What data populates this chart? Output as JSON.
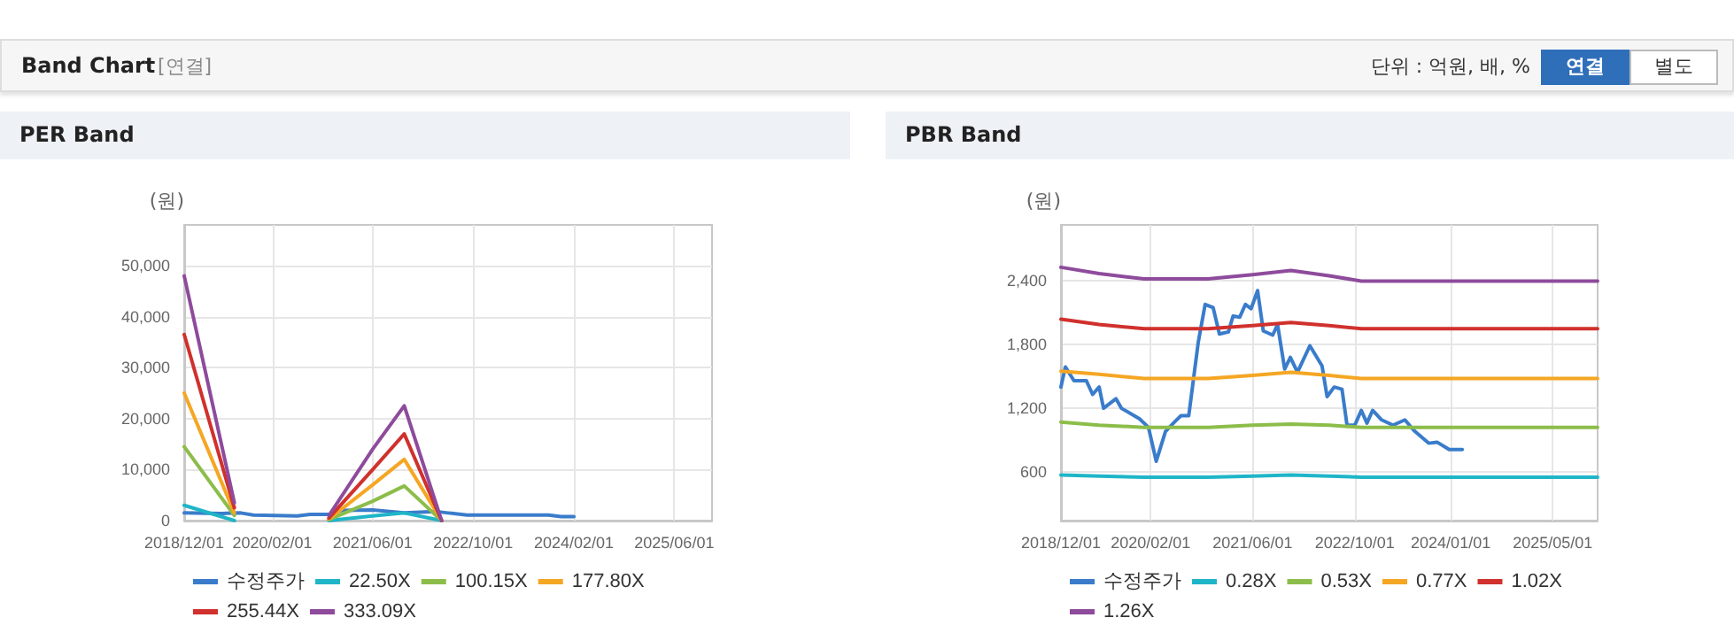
{
  "chart_data": [
    {
      "type": "line",
      "title": "PER Band",
      "ylabel": "(원)",
      "annotations": [
        "Band Chart",
        "[연결]",
        "단위 : 억원, 배, %",
        "연결",
        "별도"
      ],
      "xlim": [
        "2018-12-01",
        "2025-12-01"
      ],
      "xticks": [
        {
          "value": "2018-12-01",
          "label": "2018/12/01"
        },
        {
          "value": "2020-02-01",
          "label": "2020/02/01"
        },
        {
          "value": "2021-06-01",
          "label": "2021/06/01"
        },
        {
          "value": "2022-10-01",
          "label": "2022/10/01"
        },
        {
          "value": "2024-02-01",
          "label": "2024/02/01"
        },
        {
          "value": "2025-06-01",
          "label": "2025/06/01"
        }
      ],
      "ylim": [
        0,
        58000
      ],
      "yticks": [
        0,
        {
          "value": 10000,
          "label": "10,000"
        },
        {
          "value": 20000,
          "label": "20,000"
        },
        {
          "value": 30000,
          "label": "30,000"
        },
        {
          "value": 40000,
          "label": "40,000"
        },
        {
          "value": 50000,
          "label": "50,000"
        }
      ],
      "grid": true,
      "legend": "bottom",
      "marker": "none",
      "line_style": "solid",
      "series": [
        {
          "name": "수정주가",
          "color": "#3a7ccb",
          "x": [
            "2018-12-01",
            "2019-06-01",
            "2019-09-01",
            "2019-11-01",
            "2020-06-01",
            "2020-08-01",
            "2020-11-01",
            "2021-01-01",
            "2021-06-01",
            "2021-11-01",
            "2022-04-01",
            "2022-06-01",
            "2022-09-01",
            "2023-10-01",
            "2023-12-01",
            "2024-02-01"
          ],
          "values": [
            1500,
            1400,
            1500,
            1100,
            900,
            1200,
            1200,
            2000,
            2100,
            1500,
            1800,
            1500,
            1100,
            1100,
            800,
            800
          ]
        },
        {
          "name": "22.50X",
          "color": "#1fb5c8",
          "x": [
            "2018-12-01",
            "2019-08-01",
            "2019-09-01",
            "2020-11-01",
            "2021-06-01",
            "2021-11-01",
            "2022-05-01"
          ],
          "values": [
            3000,
            0,
            null,
            0,
            900,
            1500,
            0
          ]
        },
        {
          "name": "100.15X",
          "color": "#8cbd4a",
          "x": [
            "2018-12-01",
            "2019-08-01",
            "2019-09-01",
            "2020-11-01",
            "2021-06-01",
            "2021-11-01",
            "2022-05-01"
          ],
          "values": [
            14500,
            1000,
            null,
            200,
            3800,
            6800,
            0
          ]
        },
        {
          "name": "177.80X",
          "color": "#f5a623",
          "x": [
            "2018-12-01",
            "2019-08-01",
            "2019-09-01",
            "2020-11-01",
            "2021-06-01",
            "2021-11-01",
            "2022-05-01"
          ],
          "values": [
            25000,
            1500,
            null,
            300,
            7000,
            12000,
            0
          ]
        },
        {
          "name": "255.44X",
          "color": "#d0312d",
          "x": [
            "2018-12-01",
            "2019-08-01",
            "2019-09-01",
            "2020-11-01",
            "2021-06-01",
            "2021-11-01",
            "2022-05-01"
          ],
          "values": [
            36500,
            2500,
            null,
            500,
            10000,
            17000,
            0
          ]
        },
        {
          "name": "333.09X",
          "color": "#8e4b9c",
          "x": [
            "2018-12-01",
            "2019-08-01",
            "2019-09-01",
            "2020-11-01",
            "2021-06-01",
            "2021-11-01",
            "2022-05-01"
          ],
          "values": [
            48000,
            3500,
            null,
            1000,
            14000,
            22500,
            0
          ]
        }
      ]
    },
    {
      "type": "line",
      "title": "PBR Band",
      "ylabel": "(원)",
      "xlim": [
        "2018-12-01",
        "2025-12-01"
      ],
      "xticks": [
        {
          "value": "2018-12-01",
          "label": "2018/12/01"
        },
        {
          "value": "2020-02-01",
          "label": "2020/02/01"
        },
        {
          "value": "2021-06-01",
          "label": "2021/06/01"
        },
        {
          "value": "2022-10-01",
          "label": "2022/10/01"
        },
        {
          "value": "2024-01-01",
          "label": "2024/01/01"
        },
        {
          "value": "2025-05-01",
          "label": "2025/05/01"
        }
      ],
      "ylim": [
        140,
        2930
      ],
      "yticks": [
        600,
        {
          "value": 1200,
          "label": "1,200"
        },
        {
          "value": 1800,
          "label": "1,800"
        },
        {
          "value": 2400,
          "label": "2,400"
        }
      ],
      "grid": true,
      "legend": "bottom",
      "marker": "none",
      "line_style": "solid",
      "series": [
        {
          "name": "수정주가",
          "color": "#3a7ccb",
          "x": [
            "2018-12-01",
            "2018-12-22",
            "2019-02-01",
            "2019-04-01",
            "2019-05-01",
            "2019-06-01",
            "2019-06-22",
            "2019-08-20",
            "2019-09-15",
            "2019-12-10",
            "2020-01-22",
            "2020-02-28",
            "2020-04-12",
            "2020-05-25",
            "2020-06-25",
            "2020-08-01",
            "2020-09-15",
            "2020-10-18",
            "2020-11-25",
            "2020-12-25",
            "2021-02-06",
            "2021-02-28",
            "2021-04-01",
            "2021-04-28",
            "2021-05-25",
            "2021-06-25",
            "2021-07-22",
            "2021-09-05",
            "2021-09-28",
            "2021-11-01",
            "2021-11-28",
            "2022-01-01",
            "2022-03-01",
            "2022-04-28",
            "2022-05-22",
            "2022-06-25",
            "2022-08-01",
            "2022-08-25",
            "2022-10-01",
            "2022-11-01",
            "2022-11-28",
            "2022-12-25",
            "2023-02-06",
            "2023-04-01",
            "2023-05-28",
            "2023-07-10",
            "2023-09-18",
            "2023-10-28",
            "2023-12-25",
            "2024-02-25"
          ],
          "values": [
            1400,
            1590,
            1460,
            1460,
            1330,
            1400,
            1200,
            1290,
            1200,
            1100,
            1020,
            700,
            980,
            1070,
            1130,
            1130,
            1820,
            2180,
            2150,
            1900,
            1920,
            2070,
            2060,
            2180,
            2140,
            2310,
            1930,
            1890,
            1990,
            1570,
            1680,
            1540,
            1790,
            1600,
            1310,
            1400,
            1380,
            1040,
            1040,
            1180,
            1060,
            1180,
            1090,
            1040,
            1090,
            990,
            870,
            880,
            810,
            810
          ]
        },
        {
          "name": "0.28X",
          "color": "#1fb5c8",
          "x": [
            "2018-12-01",
            "2019-06-01",
            "2020-01-01",
            "2020-11-01",
            "2021-06-01",
            "2021-12-01",
            "2022-06-01",
            "2022-11-01",
            "2025-12-01"
          ],
          "values": [
            570,
            560,
            550,
            550,
            560,
            570,
            560,
            550,
            550
          ]
        },
        {
          "name": "0.53X",
          "color": "#8cbd4a",
          "x": [
            "2018-12-01",
            "2019-06-01",
            "2020-01-01",
            "2020-11-01",
            "2021-06-01",
            "2021-12-01",
            "2022-06-01",
            "2022-11-01",
            "2025-12-01"
          ],
          "values": [
            1070,
            1040,
            1020,
            1020,
            1040,
            1050,
            1040,
            1020,
            1020
          ]
        },
        {
          "name": "0.77X",
          "color": "#f5a623",
          "x": [
            "2018-12-01",
            "2019-06-01",
            "2020-01-01",
            "2020-11-01",
            "2021-06-01",
            "2021-12-01",
            "2022-06-01",
            "2022-11-01",
            "2025-12-01"
          ],
          "values": [
            1550,
            1520,
            1480,
            1480,
            1510,
            1540,
            1510,
            1480,
            1480
          ]
        },
        {
          "name": "1.02X",
          "color": "#d0312d",
          "x": [
            "2018-12-01",
            "2019-06-01",
            "2020-01-01",
            "2020-11-01",
            "2021-06-01",
            "2021-12-01",
            "2022-06-01",
            "2022-11-01",
            "2025-12-01"
          ],
          "values": [
            2040,
            1990,
            1950,
            1950,
            1980,
            2010,
            1980,
            1950,
            1950
          ]
        },
        {
          "name": "1.26X",
          "color": "#8e4b9c",
          "x": [
            "2018-12-01",
            "2019-06-01",
            "2020-01-01",
            "2020-11-01",
            "2021-06-01",
            "2021-12-01",
            "2022-06-01",
            "2022-11-01",
            "2025-12-01"
          ],
          "values": [
            2530,
            2470,
            2420,
            2420,
            2460,
            2500,
            2450,
            2400,
            2400
          ]
        }
      ]
    }
  ]
}
